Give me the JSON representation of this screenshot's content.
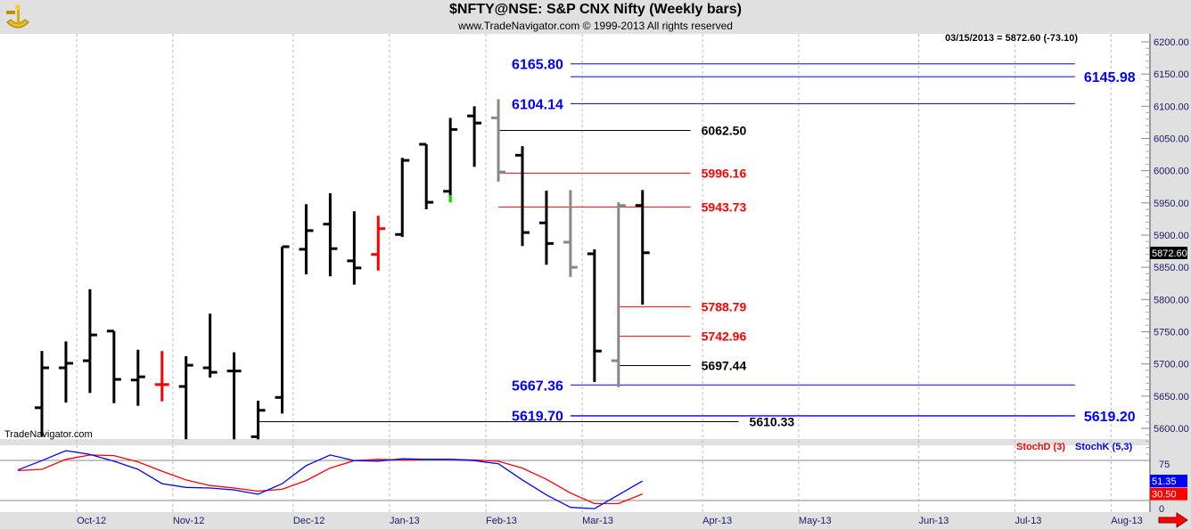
{
  "header": {
    "title": "$NFTY@NSE:  S&P CNX Nifty  (Weekly bars)",
    "subtitle": "www.TradeNavigator.com © 1999-2013 All rights reserved",
    "logo": "sextant-logo"
  },
  "readout": "03/15/2013 = 5872.60 (-73.10)",
  "watermark": "TradeNavigator.com",
  "last_price_label": "5872.60",
  "chart_data": [
    {
      "type": "ohlc",
      "title": "$NFTY@NSE: S&P CNX Nifty (Weekly bars)",
      "ylim": [
        5580,
        6215
      ],
      "yticks": [
        6200,
        6150,
        6100,
        6050,
        6000,
        5950,
        5900,
        5850,
        5800,
        5750,
        5700,
        5650,
        5600
      ],
      "xticks": [
        {
          "label": "Oct-12",
          "week": 1.45
        },
        {
          "label": "Nov-12",
          "week": 5.45
        },
        {
          "label": "Dec-12",
          "week": 10.46
        },
        {
          "label": "Jan-13",
          "week": 14.47
        },
        {
          "label": "Feb-13",
          "week": 18.48
        },
        {
          "label": "Mar-13",
          "week": 22.49
        },
        {
          "label": "Apr-13",
          "week": 27.5
        },
        {
          "label": "May-13",
          "week": 31.5
        },
        {
          "label": "Jun-13",
          "week": 36.5
        },
        {
          "label": "Jul-13",
          "week": 40.5
        },
        {
          "label": "Aug-13",
          "week": 44.5
        }
      ],
      "bars": [
        {
          "o": 5632,
          "h": 5720,
          "l": 5587,
          "c": 5694,
          "color": "#000000"
        },
        {
          "o": 5694,
          "h": 5735,
          "l": 5640,
          "c": 5701,
          "color": "#000000"
        },
        {
          "o": 5705,
          "h": 5816,
          "l": 5655,
          "c": 5745,
          "color": "#000000"
        },
        {
          "o": 5751,
          "h": 5751,
          "l": 5639,
          "c": 5676,
          "color": "#000000"
        },
        {
          "o": 5675,
          "h": 5722,
          "l": 5635,
          "c": 5680,
          "color": "#000000"
        },
        {
          "o": 5668,
          "h": 5720,
          "l": 5642,
          "c": 5668,
          "color": "#ff0000"
        },
        {
          "o": 5665,
          "h": 5712,
          "l": 5583,
          "c": 5698,
          "color": "#000000"
        },
        {
          "o": 5694,
          "h": 5778,
          "l": 5679,
          "c": 5687,
          "color": "#000000"
        },
        {
          "o": 5689,
          "h": 5718,
          "l": 5583,
          "c": 5689,
          "color": "#000000"
        },
        {
          "o": 5587,
          "h": 5643,
          "l": 5583,
          "c": 5628,
          "color": "#000000"
        },
        {
          "o": 5648,
          "h": 5882,
          "l": 5623,
          "c": 5882,
          "color": "#000000"
        },
        {
          "o": 5878,
          "h": 5948,
          "l": 5839,
          "c": 5907,
          "color": "#000000"
        },
        {
          "o": 5917,
          "h": 5965,
          "l": 5836,
          "c": 5879,
          "color": "#000000"
        },
        {
          "o": 5860,
          "h": 5937,
          "l": 5823,
          "c": 5849,
          "color": "#000000"
        },
        {
          "o": 5870,
          "h": 5930,
          "l": 5845,
          "c": 5910,
          "color": "#ff0000"
        },
        {
          "o": 5901,
          "h": 6020,
          "l": 5897,
          "c": 6016,
          "color": "#000000"
        },
        {
          "o": 6041,
          "h": 6041,
          "l": 5940,
          "c": 5951,
          "color": "#000000"
        },
        {
          "o": 5968,
          "h": 6082,
          "l": 5951,
          "c": 6064,
          "color": "#000000"
        },
        {
          "o": 6085,
          "h": 6100,
          "l": 6006,
          "c": 6074,
          "color": "#000000"
        },
        {
          "o": 6082,
          "h": 6111,
          "l": 5983,
          "c": 5998,
          "color": "#888888"
        },
        {
          "o": 6024,
          "h": 6038,
          "l": 5883,
          "c": 5904,
          "color": "#000000"
        },
        {
          "o": 5919,
          "h": 5969,
          "l": 5854,
          "c": 5887,
          "color": "#000000"
        },
        {
          "o": 5889,
          "h": 5970,
          "l": 5835,
          "c": 5850,
          "color": "#888888"
        },
        {
          "o": 5871,
          "h": 5878,
          "l": 5672,
          "c": 5720,
          "color": "#000000"
        },
        {
          "o": 5705,
          "h": 5951,
          "l": 5664,
          "c": 5946,
          "color": "#888888"
        },
        {
          "o": 5946,
          "h": 5970,
          "l": 5792,
          "c": 5872.6,
          "color": "#000000"
        }
      ],
      "levels": [
        {
          "value": 6165.8,
          "label": "6165.80",
          "color": "#0000ff",
          "from": 22,
          "to": 43,
          "label_side": "left"
        },
        {
          "value": 6145.98,
          "label": "6145.98",
          "color": "#0000ff",
          "from": 22,
          "to": 43,
          "label_side": "right"
        },
        {
          "value": 6104.14,
          "label": "6104.14",
          "color": "#0000ff",
          "from": 22,
          "to": 43,
          "label_side": "left"
        },
        {
          "value": 6062.5,
          "label": "6062.50",
          "color": "#000000",
          "from": 19,
          "to": 27,
          "label_side": "right"
        },
        {
          "value": 5996.16,
          "label": "5996.16",
          "color": "#ff0000",
          "from": 19,
          "to": 27,
          "label_side": "right"
        },
        {
          "value": 5943.73,
          "label": "5943.73",
          "color": "#ff0000",
          "from": 19,
          "to": 27,
          "label_side": "right"
        },
        {
          "value": 5788.79,
          "label": "5788.79",
          "color": "#ff0000",
          "from": 24,
          "to": 27,
          "label_side": "right"
        },
        {
          "value": 5742.96,
          "label": "5742.96",
          "color": "#ff0000",
          "from": 24,
          "to": 27,
          "label_side": "right"
        },
        {
          "value": 5697.44,
          "label": "5697.44",
          "color": "#000000",
          "from": 24,
          "to": 27,
          "label_side": "right"
        },
        {
          "value": 5667.36,
          "label": "5667.36",
          "color": "#0000ff",
          "from": 22,
          "to": 43,
          "label_side": "left"
        },
        {
          "value": 5619.7,
          "label": "5619.70",
          "color": "#0000ff",
          "from": 22,
          "to": 43,
          "label_side": "left"
        },
        {
          "value": 5619.2,
          "label": "5619.20",
          "color": "#0000ff",
          "from": 22,
          "to": 43,
          "label_side": "right"
        },
        {
          "value": 5610.33,
          "label": "5610.33",
          "color": "#000000",
          "from": 9,
          "to": 29,
          "label_side": "right"
        }
      ]
    },
    {
      "type": "line",
      "title": "Stochastic",
      "ylim": [
        0,
        100
      ],
      "yticks": [
        75,
        0
      ],
      "start_week": -1,
      "series": [
        {
          "name": "StochD (3)",
          "color": "#ff0000",
          "last": "30.50",
          "values": [
            68,
            70,
            86,
            93,
            92,
            82,
            67,
            53,
            44,
            40,
            35,
            38,
            52,
            72,
            84,
            86,
            85,
            86,
            86,
            85,
            83,
            72,
            54,
            32,
            15,
            15,
            30.5
          ]
        },
        {
          "name": "StochK (5,3)",
          "color": "#0000ff",
          "last": "51.35",
          "values": [
            69,
            84,
            100,
            94,
            83,
            70,
            47,
            41,
            40,
            37,
            30,
            47,
            76,
            93,
            84,
            83,
            87,
            86,
            86,
            84,
            79,
            53,
            29,
            9,
            7,
            29,
            51.35
          ]
        }
      ]
    }
  ]
}
